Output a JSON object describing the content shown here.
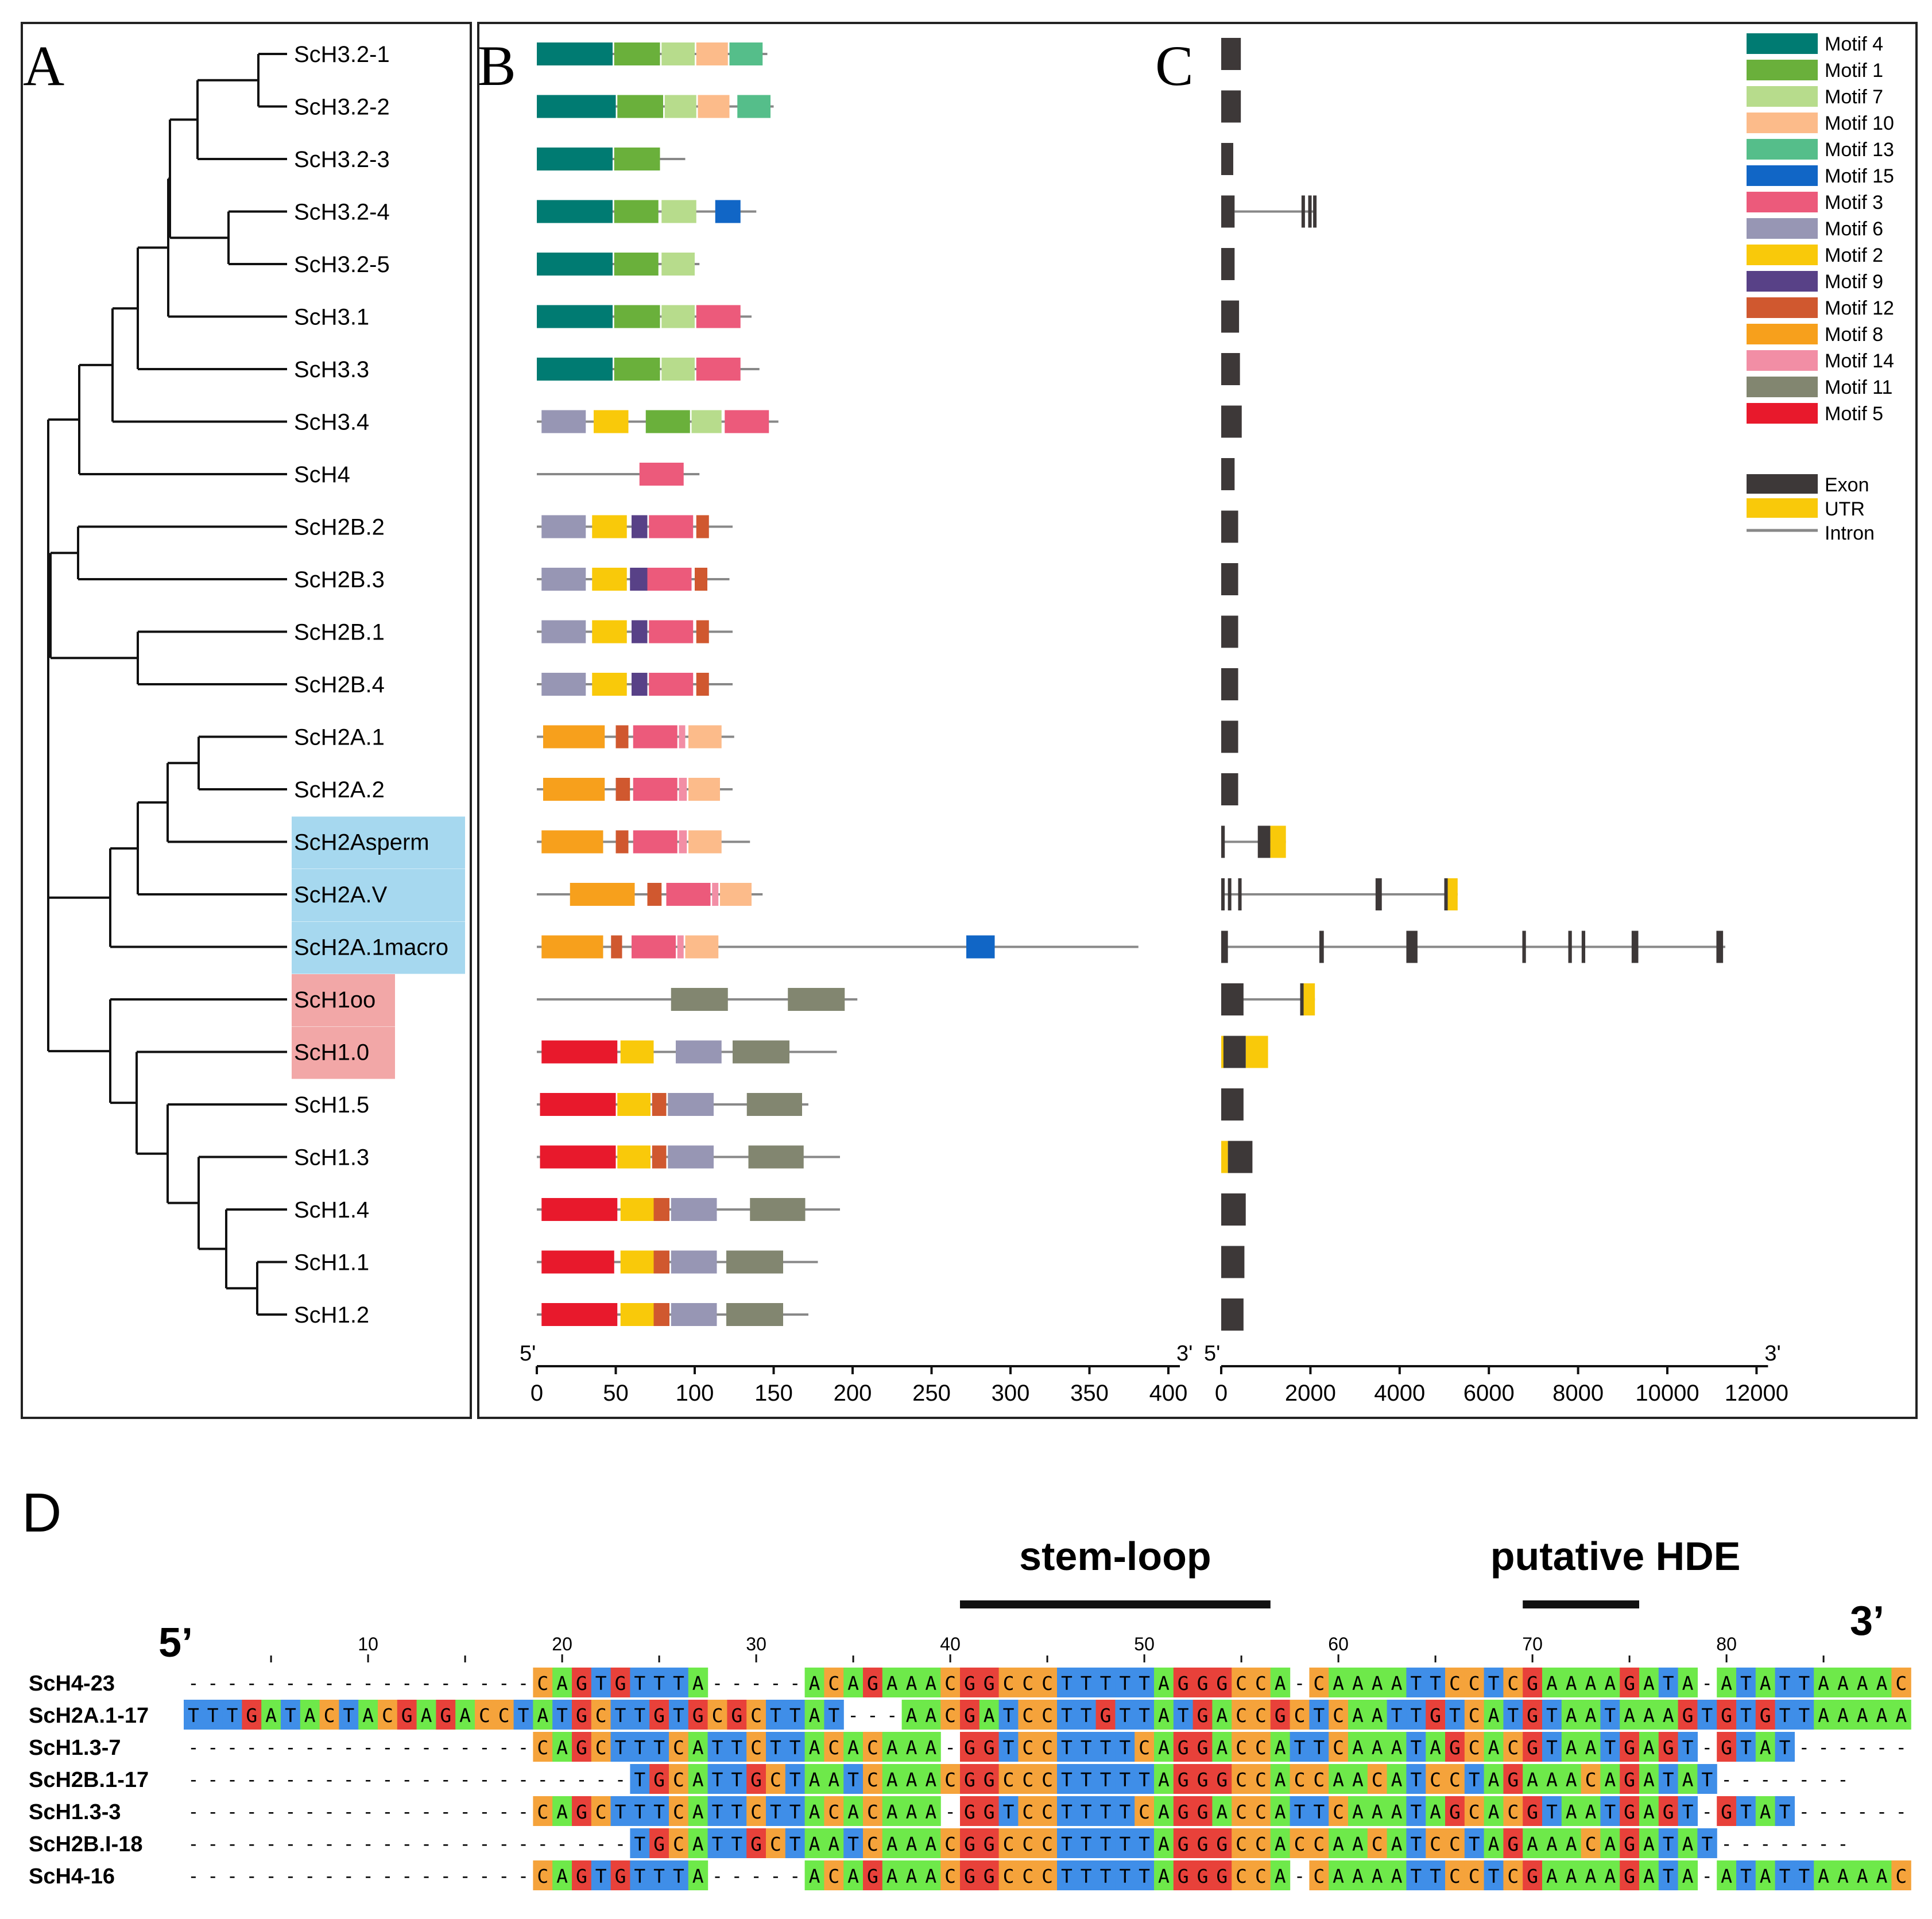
{
  "panels": {
    "A": "A",
    "B": "B",
    "C": "C",
    "D": "D"
  },
  "genes": [
    "ScH3.2-1",
    "ScH3.2-2",
    "ScH3.2-3",
    "ScH3.2-4",
    "ScH3.2-5",
    "ScH3.1",
    "ScH3.3",
    "ScH3.4",
    "ScH4",
    "ScH2B.2",
    "ScH2B.3",
    "ScH2B.1",
    "ScH2B.4",
    "ScH2A.1",
    "ScH2A.2",
    "ScH2Asperm",
    "ScH2A.V",
    "ScH2A.1macro",
    "ScH1oo",
    "ScH1.0",
    "ScH1.5",
    "ScH1.3",
    "ScH1.4",
    "ScH1.1",
    "ScH1.2"
  ],
  "highlight": {
    "blue": [
      "ScH2Asperm",
      "ScH2A.V",
      "ScH2A.1macro"
    ],
    "pink": [
      "ScH1oo",
      "ScH1.0"
    ]
  },
  "tree_highlight_colors": {
    "blue": "#a6d8ef",
    "pink": "#f2a7a7"
  },
  "motif_legend": [
    {
      "name": "Motif 4",
      "color": "#007b72"
    },
    {
      "name": "Motif 1",
      "color": "#6ab03b"
    },
    {
      "name": "Motif 7",
      "color": "#b7dc8c"
    },
    {
      "name": "Motif 10",
      "color": "#fcbb8a"
    },
    {
      "name": "Motif 13",
      "color": "#55be8a"
    },
    {
      "name": "Motif 15",
      "color": "#1166c6"
    },
    {
      "name": "Motif 3",
      "color": "#ec5a7b"
    },
    {
      "name": "Motif 6",
      "color": "#9796b4"
    },
    {
      "name": "Motif 2",
      "color": "#f9c90a"
    },
    {
      "name": "Motif 9",
      "color": "#584187"
    },
    {
      "name": "Motif 12",
      "color": "#d0582f"
    },
    {
      "name": "Motif 8",
      "color": "#f7a01c"
    },
    {
      "name": "Motif 14",
      "color": "#f28ea5"
    },
    {
      "name": "Motif 11",
      "color": "#828670"
    },
    {
      "name": "Motif 5",
      "color": "#e8192c"
    }
  ],
  "structure_legend": [
    {
      "name": "Exon",
      "color": "#3d3838"
    },
    {
      "name": "UTR",
      "color": "#f9c90a"
    },
    {
      "name": "Intron",
      "color": "#888888"
    }
  ],
  "motifs": [
    {
      "len": 146,
      "m": [
        [
          "Motif 4",
          0,
          48
        ],
        [
          "Motif 1",
          49,
          78
        ],
        [
          "Motif 7",
          79,
          100
        ],
        [
          "Motif 10",
          101,
          121
        ],
        [
          "Motif 13",
          122,
          143
        ]
      ]
    },
    {
      "len": 150,
      "m": [
        [
          "Motif 4",
          0,
          50
        ],
        [
          "Motif 1",
          51,
          80
        ],
        [
          "Motif 7",
          81,
          101
        ],
        [
          "Motif 10",
          102,
          122
        ],
        [
          "Motif 13",
          127,
          148
        ]
      ]
    },
    {
      "len": 94,
      "m": [
        [
          "Motif 4",
          0,
          48
        ],
        [
          "Motif 1",
          49,
          78
        ]
      ]
    },
    {
      "len": 139,
      "m": [
        [
          "Motif 4",
          0,
          48
        ],
        [
          "Motif 1",
          49,
          77
        ],
        [
          "Motif 7",
          79,
          101
        ],
        [
          "Motif 15",
          113,
          129
        ]
      ]
    },
    {
      "len": 103,
      "m": [
        [
          "Motif 4",
          0,
          48
        ],
        [
          "Motif 1",
          49,
          77
        ],
        [
          "Motif 7",
          79,
          100
        ]
      ]
    },
    {
      "len": 136,
      "m": [
        [
          "Motif 4",
          0,
          48
        ],
        [
          "Motif 1",
          49,
          78
        ],
        [
          "Motif 7",
          79,
          100
        ],
        [
          "Motif 3",
          101,
          129
        ]
      ]
    },
    {
      "len": 141,
      "m": [
        [
          "Motif 4",
          0,
          48
        ],
        [
          "Motif 1",
          49,
          78
        ],
        [
          "Motif 7",
          79,
          100
        ],
        [
          "Motif 3",
          101,
          129
        ]
      ]
    },
    {
      "len": 153,
      "m": [
        [
          "Motif 6",
          3,
          31
        ],
        [
          "Motif 2",
          36,
          58
        ],
        [
          "Motif 1",
          69,
          97
        ],
        [
          "Motif 7",
          98,
          117
        ],
        [
          "Motif 3",
          119,
          147
        ]
      ]
    },
    {
      "len": 103,
      "m": [
        [
          "Motif 3",
          65,
          93
        ]
      ]
    },
    {
      "len": 124,
      "m": [
        [
          "Motif 6",
          3,
          31
        ],
        [
          "Motif 2",
          35,
          57
        ],
        [
          "Motif 9",
          60,
          70
        ],
        [
          "Motif 3",
          71,
          99
        ],
        [
          "Motif 12",
          101,
          109
        ]
      ]
    },
    {
      "len": 122,
      "m": [
        [
          "Motif 6",
          3,
          31
        ],
        [
          "Motif 2",
          35,
          57
        ],
        [
          "Motif 9",
          59,
          70
        ],
        [
          "Motif 3",
          70,
          98
        ],
        [
          "Motif 12",
          100,
          108
        ]
      ]
    },
    {
      "len": 124,
      "m": [
        [
          "Motif 6",
          3,
          31
        ],
        [
          "Motif 2",
          35,
          57
        ],
        [
          "Motif 9",
          60,
          70
        ],
        [
          "Motif 3",
          71,
          99
        ],
        [
          "Motif 12",
          101,
          109
        ]
      ]
    },
    {
      "len": 124,
      "m": [
        [
          "Motif 6",
          3,
          31
        ],
        [
          "Motif 2",
          35,
          57
        ],
        [
          "Motif 9",
          60,
          70
        ],
        [
          "Motif 3",
          71,
          99
        ],
        [
          "Motif 12",
          101,
          109
        ]
      ]
    },
    {
      "len": 125,
      "m": [
        [
          "Motif 8",
          4,
          43
        ],
        [
          "Motif 12",
          50,
          58
        ],
        [
          "Motif 3",
          61,
          89
        ],
        [
          "Motif 14",
          90,
          94
        ],
        [
          "Motif 10",
          96,
          117
        ]
      ]
    },
    {
      "len": 124,
      "m": [
        [
          "Motif 8",
          4,
          43
        ],
        [
          "Motif 12",
          50,
          59
        ],
        [
          "Motif 3",
          61,
          89
        ],
        [
          "Motif 14",
          90,
          95
        ],
        [
          "Motif 10",
          96,
          116
        ]
      ]
    },
    {
      "len": 135,
      "m": [
        [
          "Motif 8",
          3,
          42
        ],
        [
          "Motif 12",
          50,
          58
        ],
        [
          "Motif 3",
          61,
          89
        ],
        [
          "Motif 14",
          90,
          95
        ],
        [
          "Motif 10",
          96,
          117
        ]
      ]
    },
    {
      "len": 143,
      "m": [
        [
          "Motif 8",
          21,
          62
        ],
        [
          "Motif 12",
          70,
          79
        ],
        [
          "Motif 3",
          82,
          110
        ],
        [
          "Motif 14",
          111,
          115
        ],
        [
          "Motif 10",
          116,
          136
        ]
      ]
    },
    {
      "len": 381,
      "m": [
        [
          "Motif 8",
          3,
          42
        ],
        [
          "Motif 12",
          47,
          54
        ],
        [
          "Motif 3",
          60,
          88
        ],
        [
          "Motif 14",
          89,
          93
        ],
        [
          "Motif 10",
          94,
          115
        ],
        [
          "Motif 15",
          272,
          290
        ]
      ]
    },
    {
      "len": 203,
      "m": [
        [
          "Motif 11",
          85,
          121
        ],
        [
          "Motif 11",
          159,
          195
        ]
      ]
    },
    {
      "len": 190,
      "m": [
        [
          "Motif 5",
          3,
          51
        ],
        [
          "Motif 2",
          53,
          74
        ],
        [
          "Motif 6",
          88,
          117
        ],
        [
          "Motif 11",
          124,
          160
        ]
      ]
    },
    {
      "len": 172,
      "m": [
        [
          "Motif 5",
          2,
          50
        ],
        [
          "Motif 2",
          51,
          72
        ],
        [
          "Motif 12",
          73,
          82
        ],
        [
          "Motif 6",
          83,
          112
        ],
        [
          "Motif 11",
          133,
          168
        ]
      ]
    },
    {
      "len": 192,
      "m": [
        [
          "Motif 5",
          2,
          50
        ],
        [
          "Motif 2",
          51,
          72
        ],
        [
          "Motif 12",
          73,
          82
        ],
        [
          "Motif 6",
          83,
          112
        ],
        [
          "Motif 11",
          134,
          169
        ]
      ]
    },
    {
      "len": 192,
      "m": [
        [
          "Motif 5",
          3,
          51
        ],
        [
          "Motif 2",
          53,
          74
        ],
        [
          "Motif 12",
          74,
          84
        ],
        [
          "Motif 6",
          85,
          114
        ],
        [
          "Motif 11",
          135,
          170
        ]
      ]
    },
    {
      "len": 178,
      "m": [
        [
          "Motif 5",
          3,
          49
        ],
        [
          "Motif 2",
          53,
          74
        ],
        [
          "Motif 12",
          74,
          84
        ],
        [
          "Motif 6",
          85,
          114
        ],
        [
          "Motif 11",
          120,
          156
        ]
      ]
    },
    {
      "len": 172,
      "m": [
        [
          "Motif 5",
          3,
          51
        ],
        [
          "Motif 2",
          53,
          74
        ],
        [
          "Motif 12",
          74,
          84
        ],
        [
          "Motif 6",
          85,
          114
        ],
        [
          "Motif 11",
          120,
          156
        ]
      ]
    }
  ],
  "structures": [
    {
      "introns": [],
      "exons": [
        [
          0,
          440
        ]
      ],
      "utrs": []
    },
    {
      "introns": [],
      "exons": [
        [
          0,
          440
        ]
      ],
      "utrs": []
    },
    {
      "introns": [],
      "exons": [
        [
          0,
          270
        ]
      ],
      "utrs": []
    },
    {
      "introns": [
        [
          300,
          2100
        ]
      ],
      "exons": [
        [
          0,
          300
        ],
        [
          1800,
          1840
        ],
        [
          1950,
          1990
        ],
        [
          2060,
          2100
        ]
      ],
      "utrs": []
    },
    {
      "introns": [],
      "exons": [
        [
          0,
          300
        ]
      ],
      "utrs": []
    },
    {
      "introns": [],
      "exons": [
        [
          0,
          400
        ]
      ],
      "utrs": []
    },
    {
      "introns": [],
      "exons": [
        [
          0,
          420
        ]
      ],
      "utrs": []
    },
    {
      "introns": [],
      "exons": [
        [
          0,
          460
        ]
      ],
      "utrs": []
    },
    {
      "introns": [],
      "exons": [
        [
          0,
          300
        ]
      ],
      "utrs": []
    },
    {
      "introns": [],
      "exons": [
        [
          0,
          380
        ]
      ],
      "utrs": []
    },
    {
      "introns": [],
      "exons": [
        [
          0,
          380
        ]
      ],
      "utrs": []
    },
    {
      "introns": [],
      "exons": [
        [
          0,
          380
        ]
      ],
      "utrs": []
    },
    {
      "introns": [],
      "exons": [
        [
          0,
          380
        ]
      ],
      "utrs": []
    },
    {
      "introns": [],
      "exons": [
        [
          0,
          380
        ]
      ],
      "utrs": []
    },
    {
      "introns": [],
      "exons": [
        [
          0,
          380
        ]
      ],
      "utrs": []
    },
    {
      "introns": [
        [
          0,
          1450
        ]
      ],
      "exons": [
        [
          0,
          80
        ],
        [
          820,
          1100
        ]
      ],
      "utrs": [
        [
          1100,
          1450
        ]
      ]
    },
    {
      "introns": [
        [
          0,
          5300
        ]
      ],
      "exons": [
        [
          0,
          40
        ],
        [
          150,
          200
        ],
        [
          380,
          430
        ],
        [
          3460,
          3600
        ],
        [
          5000,
          5060
        ]
      ],
      "utrs": [
        [
          5060,
          5300
        ]
      ]
    },
    {
      "introns": [
        [
          0,
          11300
        ]
      ],
      "exons": [
        [
          0,
          150
        ],
        [
          2200,
          2300
        ],
        [
          4150,
          4400
        ],
        [
          6750,
          6830
        ],
        [
          7780,
          7860
        ],
        [
          8080,
          8160
        ],
        [
          9200,
          9350
        ],
        [
          11100,
          11250
        ]
      ],
      "utrs": []
    },
    {
      "introns": [
        [
          0,
          2100
        ]
      ],
      "exons": [
        [
          0,
          500
        ],
        [
          1770,
          1830
        ]
      ],
      "utrs": [
        [
          1830,
          2100
        ]
      ]
    },
    {
      "introns": [],
      "exons": [
        [
          50,
          550
        ]
      ],
      "utrs": [
        [
          0,
          50
        ],
        [
          550,
          1050
        ]
      ]
    },
    {
      "introns": [],
      "exons": [
        [
          0,
          500
        ]
      ],
      "utrs": []
    },
    {
      "introns": [],
      "exons": [
        [
          150,
          700
        ]
      ],
      "utrs": [
        [
          0,
          150
        ]
      ]
    },
    {
      "introns": [],
      "exons": [
        [
          0,
          550
        ]
      ],
      "utrs": []
    },
    {
      "introns": [],
      "exons": [
        [
          0,
          520
        ]
      ],
      "utrs": []
    },
    {
      "introns": [],
      "exons": [
        [
          0,
          500
        ]
      ],
      "utrs": []
    }
  ],
  "axis_B": {
    "ticks": [
      "0",
      "50",
      "100",
      "150",
      "200",
      "250",
      "300",
      "350",
      "400"
    ],
    "values": [
      0,
      50,
      100,
      150,
      200,
      250,
      300,
      350,
      400
    ],
    "start_label": "5'",
    "end_label": "3'"
  },
  "axis_C": {
    "ticks": [
      "0",
      "2000",
      "4000",
      "6000",
      "8000",
      "10000",
      "12000"
    ],
    "values": [
      0,
      2000,
      4000,
      6000,
      8000,
      10000,
      12000
    ],
    "start_label": "5'",
    "end_label": "3'"
  },
  "alignment": {
    "five_prime": "5’",
    "three_prime": "3’",
    "stem_loop_label": "stem-loop",
    "stem_loop_cols": [
      41,
      56
    ],
    "hde_label": "putative HDE",
    "hde_cols": [
      70,
      75
    ],
    "ruler": [
      "10",
      "20",
      "30",
      "40",
      "50",
      "60",
      "70",
      "80"
    ],
    "ruler_cols": [
      10,
      20,
      30,
      40,
      50,
      60,
      70,
      80
    ],
    "base_colors": {
      "A": "#6ee94a",
      "C": "#f5a33b",
      "G": "#e8413a",
      "T": "#3f8ee8"
    },
    "rows": [
      {
        "name": "ScH4-23",
        "seq": "------------------CAGTGTTTA-----ACAGAAACGGCCCTTTTTAGGGCCA-CAAAATTCCTCGAAAAGATA-ATATTAAAAC"
      },
      {
        "name": "ScH2A.1-17",
        "seq": "TTTGATACTACGAGACCTATGCTTGTGCGCTTAT---AACGATCCTTGTTATGACCGCTCAATTGTCATGTAATAAAGTGTGTTAAAAA"
      },
      {
        "name": "ScH1.3-7",
        "seq": "------------------CAGCTTTCATTCTTACACAAA-GGTCCTTTTCAGGACCATTCAAATAGCACGTAATGAGT-GTAT------"
      },
      {
        "name": "ScH2B.1-17",
        "seq": "-----------------------TGCATTGCTAATCAAACGGCCCTTTTTAGGGCCACCAACATCCTAGAAACAGATAT-------"
      },
      {
        "name": "ScH1.3-3",
        "seq": "------------------CAGCTTTCATTCTTACACAAA-GGTCCTTTTCAGGACCATTCAAATAGCACGTAATGAGT-GTAT------"
      },
      {
        "name": "ScH2B.I-18",
        "seq": "-----------------------TGCATTGCTAATCAAACGGCCCTTTTTAGGGCCACCAACATCCTAGAAACAGATAT-------"
      },
      {
        "name": "ScH4-16",
        "seq": "------------------CAGTGTTTA-----ACAGAAACGGCCCTTTTTAGGGCCA-CAAAATTCCTCGAAAAGATA-ATATTAAAAC"
      }
    ]
  }
}
